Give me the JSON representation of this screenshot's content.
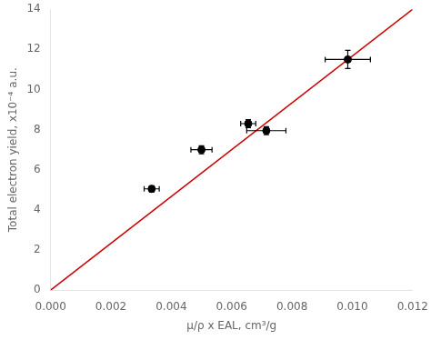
{
  "chart_data": {
    "type": "scatter",
    "xlabel": "μ/ρ x EAL, cm³/g",
    "ylabel": "Total electron yield, x10⁻⁴ a.u.",
    "xlim": [
      0.0,
      0.012
    ],
    "ylim": [
      0,
      14
    ],
    "xticks": [
      {
        "value": 0.0,
        "label": "0.000"
      },
      {
        "value": 0.002,
        "label": "0.002"
      },
      {
        "value": 0.004,
        "label": "0.004"
      },
      {
        "value": 0.006,
        "label": "0.006"
      },
      {
        "value": 0.008,
        "label": "0.008"
      },
      {
        "value": 0.01,
        "label": "0.010"
      },
      {
        "value": 0.012,
        "label": "0.012"
      }
    ],
    "yticks": [
      0,
      2,
      4,
      6,
      8,
      10,
      12,
      14
    ],
    "grid": false,
    "series": [
      {
        "type": "line",
        "x": [
          0.0,
          0.012
        ],
        "values": [
          0.0,
          14.0
        ],
        "color": "#cc0000",
        "line_style": "solid"
      },
      {
        "type": "scatter",
        "x": [
          0.00335,
          0.005,
          0.00655,
          0.00715,
          0.00985
        ],
        "values": [
          5.05,
          7.0,
          8.3,
          7.95,
          11.5
        ],
        "xerr": [
          0.00025,
          0.00035,
          0.00025,
          0.00065,
          0.00075
        ],
        "yerr": [
          0.15,
          0.2,
          0.2,
          0.2,
          0.45
        ],
        "color": "black",
        "marker": "circle"
      }
    ]
  }
}
